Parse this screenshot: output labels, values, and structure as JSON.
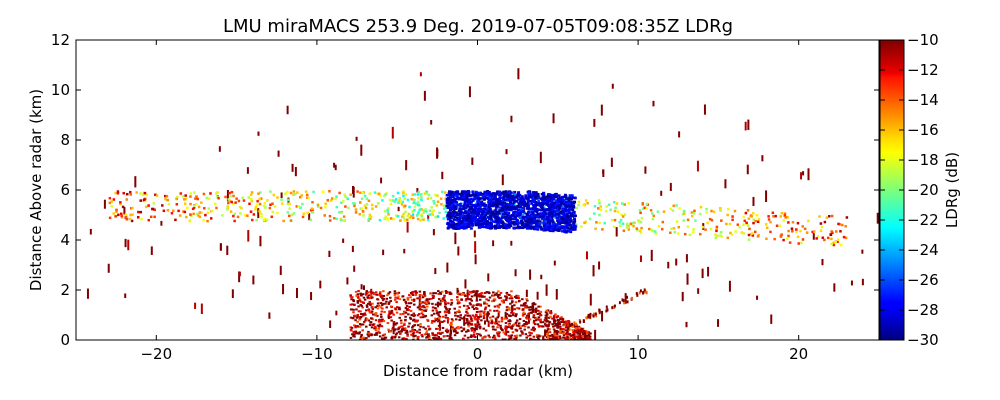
{
  "chart_data": {
    "type": "heatmap",
    "title": "LMU miraMACS 253.9 Deg. 2019-07-05T09:08:35Z  LDRg",
    "xlabel": "Distance from radar (km)",
    "ylabel": "Distance Above radar  (km)",
    "xlim": [
      -25,
      25
    ],
    "ylim": [
      0,
      12
    ],
    "xticks": [
      -20,
      -10,
      0,
      10,
      20
    ],
    "yticks": [
      0,
      2,
      4,
      6,
      8,
      10,
      12
    ],
    "grid": false,
    "colorbar": {
      "label": "LDRg (dB)",
      "range": [
        -30,
        -10
      ],
      "ticks": [
        -10,
        -12,
        -14,
        -16,
        -18,
        -20,
        -22,
        -24,
        -26,
        -28,
        -30
      ],
      "colormap": "jet"
    },
    "features": [
      {
        "name": "low-level clutter fan",
        "x_range": [
          -8,
          7
        ],
        "y_range": [
          0,
          2
        ],
        "ldr_db": -11
      },
      {
        "name": "upper cloud layer",
        "x_range": [
          -23,
          23
        ],
        "y_range": [
          4.3,
          6
        ],
        "ldr_db": -22
      },
      {
        "name": "low-LDR core",
        "x_range": [
          -2,
          6
        ],
        "y_range": [
          4.5,
          6
        ],
        "ldr_db": -29
      }
    ]
  }
}
